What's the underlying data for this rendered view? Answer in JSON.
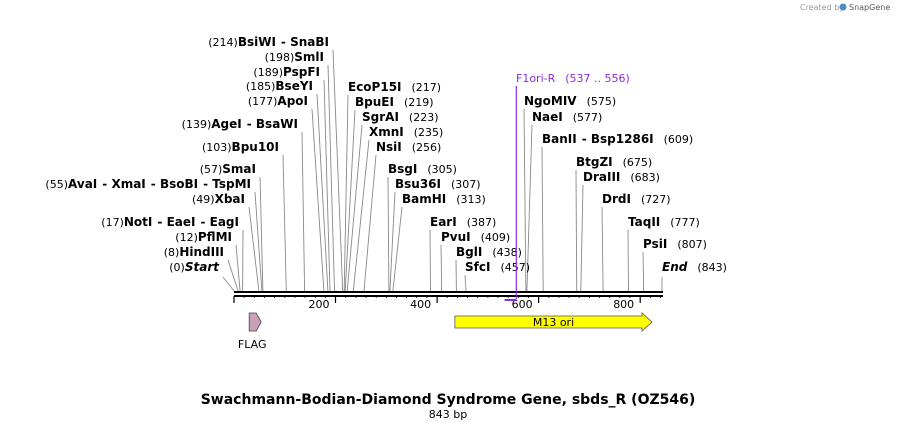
{
  "branding": {
    "created_by": "Created by",
    "product": "SnapGene",
    "accent": "#4b8cc8"
  },
  "title": "Swachmann-Bodian-Diamond Syndrome Gene, sbds_R (OZ546)",
  "length_label": "843 bp",
  "sequence_length": 843,
  "axis_ticks": [
    200,
    400,
    600,
    800
  ],
  "sites": [
    {
      "pos": 0,
      "pos_label": "(0)",
      "names": [
        "Start"
      ],
      "em": true
    },
    {
      "pos": 8,
      "pos_label": "(8)",
      "names": [
        "HindIII"
      ]
    },
    {
      "pos": 12,
      "pos_label": "(12)",
      "names": [
        "PflMI"
      ]
    },
    {
      "pos": 17,
      "pos_label": "(17)",
      "names": [
        "NotI",
        "EaeI",
        "EagI"
      ]
    },
    {
      "pos": 49,
      "pos_label": "(49)",
      "names": [
        "XbaI"
      ]
    },
    {
      "pos": 55,
      "pos_label": "(55)",
      "names": [
        "AvaI",
        "XmaI",
        "BsoBI",
        "TspMI"
      ]
    },
    {
      "pos": 57,
      "pos_label": "(57)",
      "names": [
        "SmaI"
      ]
    },
    {
      "pos": 103,
      "pos_label": "(103)",
      "names": [
        "Bpu10I"
      ]
    },
    {
      "pos": 139,
      "pos_label": "(139)",
      "names": [
        "AgeI",
        "BsaWI"
      ]
    },
    {
      "pos": 177,
      "pos_label": "(177)",
      "names": [
        "ApoI"
      ]
    },
    {
      "pos": 185,
      "pos_label": "(185)",
      "names": [
        "BseYI"
      ]
    },
    {
      "pos": 189,
      "pos_label": "(189)",
      "names": [
        "PspFI"
      ]
    },
    {
      "pos": 198,
      "pos_label": "(198)",
      "names": [
        "SmlI"
      ]
    },
    {
      "pos": 214,
      "pos_label": "(214)",
      "names": [
        "BsiWI",
        "SnaBI"
      ]
    },
    {
      "pos": 217,
      "pos_label": "(217)",
      "names": [
        "EcoP15I"
      ]
    },
    {
      "pos": 219,
      "pos_label": "(219)",
      "names": [
        "BpuEI"
      ]
    },
    {
      "pos": 223,
      "pos_label": "(223)",
      "names": [
        "SgrAI"
      ]
    },
    {
      "pos": 235,
      "pos_label": "(235)",
      "names": [
        "XmnI"
      ]
    },
    {
      "pos": 256,
      "pos_label": "(256)",
      "names": [
        "NsiI"
      ]
    },
    {
      "pos": 305,
      "pos_label": "(305)",
      "names": [
        "BsgI"
      ]
    },
    {
      "pos": 307,
      "pos_label": "(307)",
      "names": [
        "Bsu36I"
      ]
    },
    {
      "pos": 313,
      "pos_label": "(313)",
      "names": [
        "BamHI"
      ]
    },
    {
      "pos": 387,
      "pos_label": "(387)",
      "names": [
        "EarI"
      ]
    },
    {
      "pos": 409,
      "pos_label": "(409)",
      "names": [
        "PvuI"
      ]
    },
    {
      "pos": 438,
      "pos_label": "(438)",
      "names": [
        "BglI"
      ]
    },
    {
      "pos": 457,
      "pos_label": "(457)",
      "names": [
        "SfcI"
      ]
    },
    {
      "pos": 575,
      "pos_label": "(575)",
      "names": [
        "NgoMIV"
      ]
    },
    {
      "pos": 577,
      "pos_label": "(577)",
      "names": [
        "NaeI"
      ]
    },
    {
      "pos": 609,
      "pos_label": "(609)",
      "names": [
        "BanII",
        "Bsp1286I"
      ]
    },
    {
      "pos": 675,
      "pos_label": "(675)",
      "names": [
        "BtgZI"
      ]
    },
    {
      "pos": 683,
      "pos_label": "(683)",
      "names": [
        "DraIII"
      ]
    },
    {
      "pos": 727,
      "pos_label": "(727)",
      "names": [
        "DrdI"
      ]
    },
    {
      "pos": 777,
      "pos_label": "(777)",
      "names": [
        "TaqII"
      ]
    },
    {
      "pos": 807,
      "pos_label": "(807)",
      "names": [
        "PsiI"
      ]
    },
    {
      "pos": 843,
      "pos_label": "(843)",
      "names": [
        "End"
      ],
      "em": true
    }
  ],
  "primer": {
    "name": "F1ori-R",
    "range_label": "(537 .. 556)",
    "start": 537,
    "end": 556,
    "color": "#8a2be2"
  },
  "features": [
    {
      "name": "FLAG",
      "start": 24,
      "end": 47,
      "color": "#c9a0b8",
      "label_position": "below"
    },
    {
      "name": "M13 ori",
      "start": 447,
      "end": 843,
      "color": "#ffff00",
      "label_position": "inside"
    }
  ]
}
